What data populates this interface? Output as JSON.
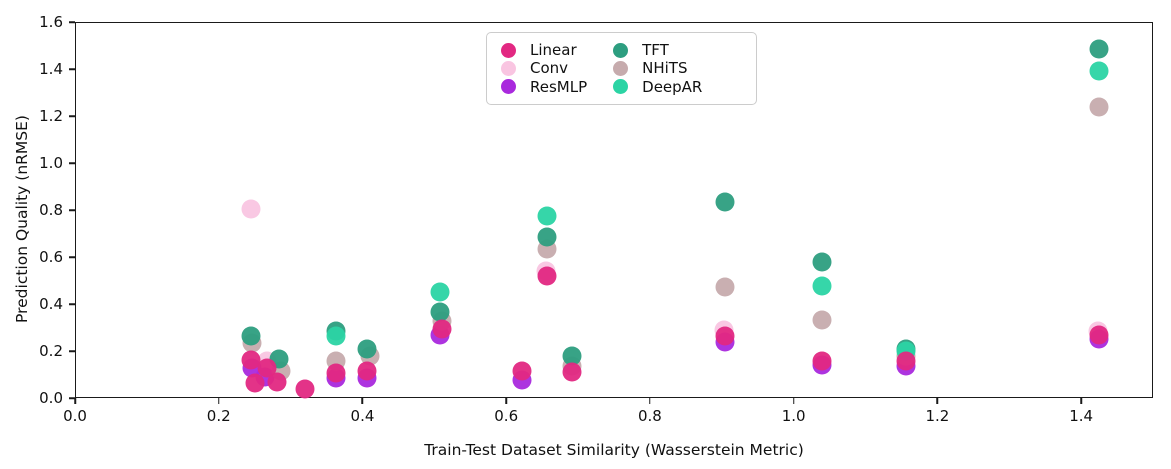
{
  "chart_data": {
    "type": "scatter",
    "title": "",
    "xlabel": "Train-Test Dataset Similarity (Wasserstein Metric)",
    "ylabel": "Prediction Quality (nRMSE)",
    "xlim": [
      0.0,
      1.5
    ],
    "ylim": [
      0.0,
      1.6
    ],
    "xticks": [
      "0.0",
      "0.2",
      "0.4",
      "0.6",
      "0.8",
      "1.0",
      "1.2",
      "1.4"
    ],
    "yticks": [
      "0.0",
      "0.2",
      "0.4",
      "0.6",
      "0.8",
      "1.0",
      "1.2",
      "1.4",
      "1.6"
    ],
    "grid": false,
    "legend_position": "upper center-left",
    "legend_columns": [
      [
        "Linear",
        "Conv",
        "ResMLP"
      ],
      [
        "TFT",
        "NHiTS",
        "DeepAR"
      ]
    ],
    "draw_order": [
      "Conv",
      "ResMLP",
      "NHiTS",
      "TFT",
      "DeepAR",
      "Linear"
    ],
    "series": [
      {
        "name": "Linear",
        "color": "#e22882",
        "points": [
          [
            0.245,
            0.163
          ],
          [
            0.25,
            0.065
          ],
          [
            0.267,
            0.127
          ],
          [
            0.281,
            0.067
          ],
          [
            0.32,
            0.04
          ],
          [
            0.363,
            0.105
          ],
          [
            0.407,
            0.117
          ],
          [
            0.51,
            0.295
          ],
          [
            0.622,
            0.113
          ],
          [
            0.657,
            0.52
          ],
          [
            0.691,
            0.11
          ],
          [
            0.905,
            0.265
          ],
          [
            1.04,
            0.157
          ],
          [
            1.156,
            0.157
          ],
          [
            1.425,
            0.268
          ]
        ]
      },
      {
        "name": "Conv",
        "color": "#f9c5e1",
        "points": [
          [
            0.245,
            0.805
          ],
          [
            0.267,
            0.158
          ],
          [
            0.655,
            0.54
          ],
          [
            0.903,
            0.29
          ],
          [
            1.423,
            0.285
          ]
        ]
      },
      {
        "name": "ResMLP",
        "color": "#a929dd",
        "points": [
          [
            0.246,
            0.127
          ],
          [
            0.265,
            0.088
          ],
          [
            0.363,
            0.085
          ],
          [
            0.407,
            0.084
          ],
          [
            0.508,
            0.267
          ],
          [
            0.622,
            0.078
          ],
          [
            0.905,
            0.24
          ],
          [
            1.04,
            0.14
          ],
          [
            1.156,
            0.135
          ],
          [
            1.425,
            0.253
          ]
        ]
      },
      {
        "name": "TFT",
        "color": "#2d9e80",
        "points": [
          [
            0.245,
            0.262
          ],
          [
            0.284,
            0.165
          ],
          [
            0.363,
            0.285
          ],
          [
            0.407,
            0.207
          ],
          [
            0.508,
            0.368
          ],
          [
            0.657,
            0.685
          ],
          [
            0.691,
            0.178
          ],
          [
            0.905,
            0.835
          ],
          [
            1.04,
            0.577
          ],
          [
            1.156,
            0.21
          ],
          [
            1.425,
            1.487
          ]
        ]
      },
      {
        "name": "NHiTS",
        "color": "#c6abad",
        "points": [
          [
            0.246,
            0.233
          ],
          [
            0.287,
            0.115
          ],
          [
            0.363,
            0.157
          ],
          [
            0.41,
            0.18
          ],
          [
            0.51,
            0.327
          ],
          [
            0.657,
            0.633
          ],
          [
            0.691,
            0.136
          ],
          [
            0.905,
            0.472
          ],
          [
            1.04,
            0.333
          ],
          [
            1.156,
            0.18
          ],
          [
            1.425,
            1.24
          ]
        ]
      },
      {
        "name": "DeepAR",
        "color": "#2bd4a4",
        "points": [
          [
            0.363,
            0.262
          ],
          [
            0.508,
            0.45
          ],
          [
            0.657,
            0.775
          ],
          [
            1.04,
            0.477
          ],
          [
            1.156,
            0.198
          ],
          [
            1.425,
            1.392
          ]
        ]
      }
    ]
  }
}
